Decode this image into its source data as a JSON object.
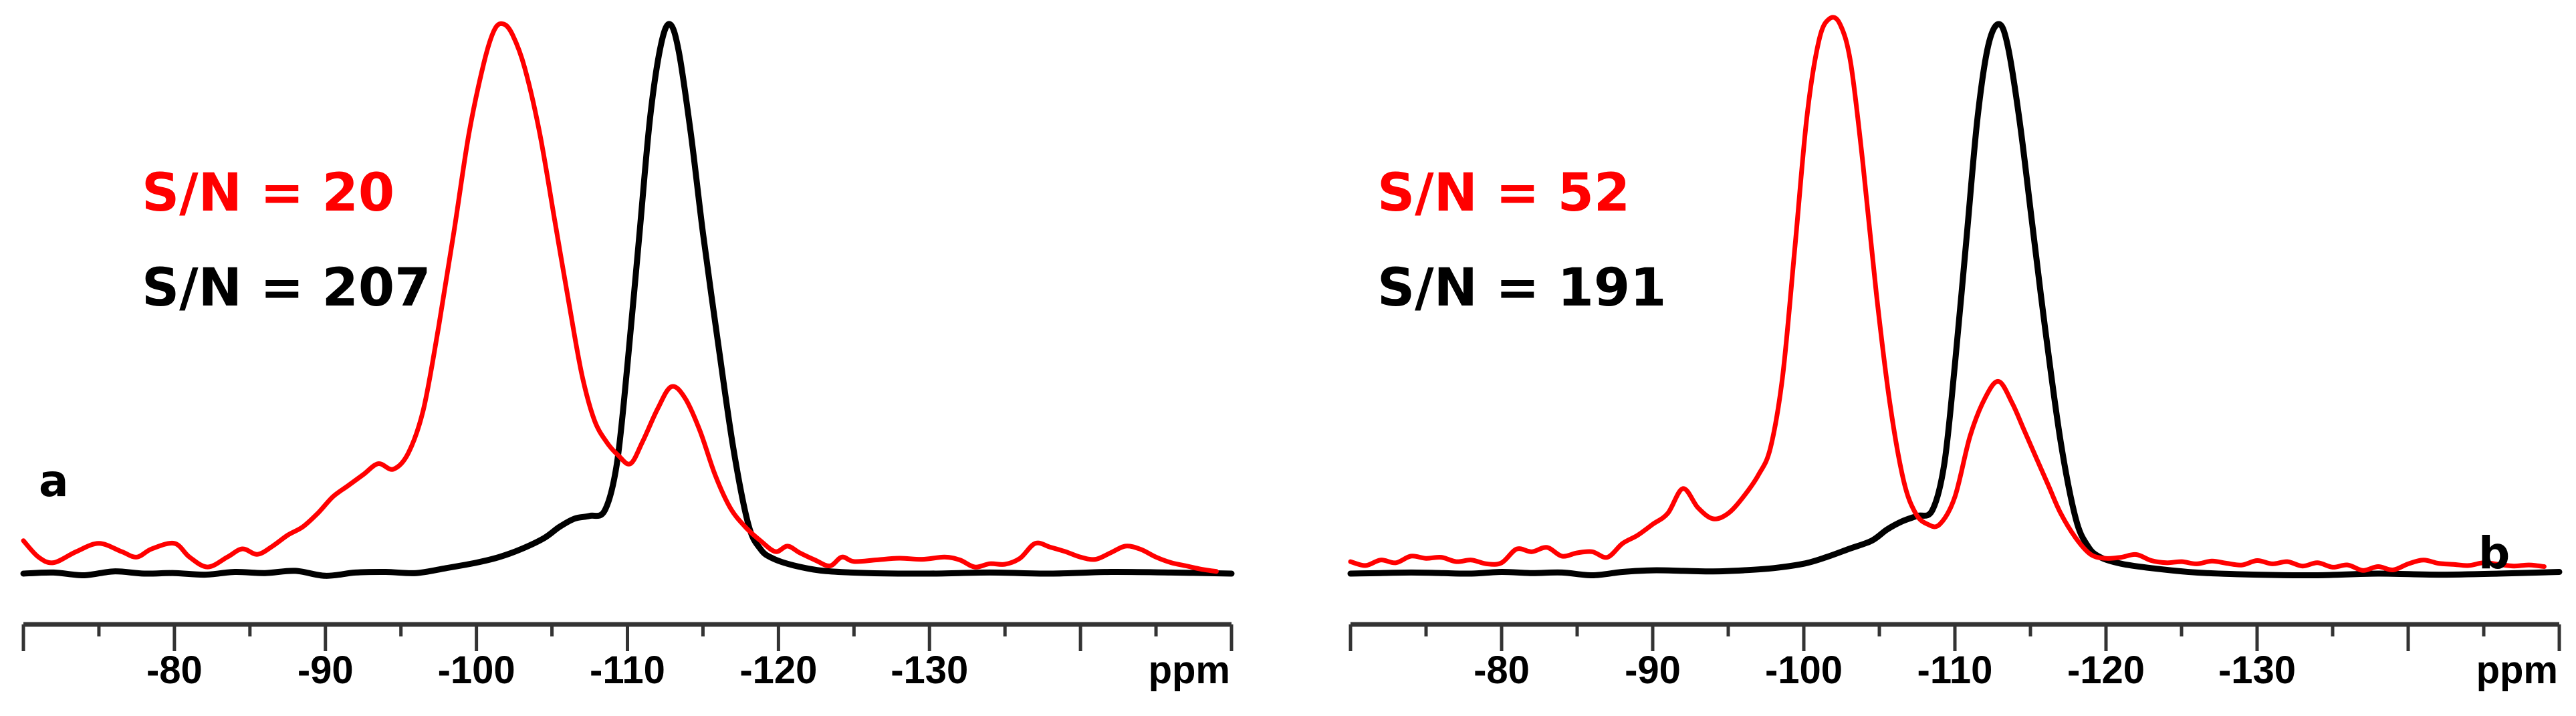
{
  "colors": {
    "red": "#ff0000",
    "black": "#000000",
    "axis": "#333333"
  },
  "panels": [
    {
      "label": "a",
      "sn_red": "S/N = 20",
      "sn_black": "S/N = 207",
      "axis_unit": "ppm"
    },
    {
      "label": "b",
      "sn_red": "S/N = 52",
      "sn_black": "S/N = 191",
      "axis_unit": "ppm"
    }
  ],
  "chart_data": [
    {
      "type": "line",
      "panel": "a",
      "title": "",
      "xlabel": "ppm",
      "ylabel": "",
      "xlim": [
        -70,
        -150
      ],
      "x_reversed": true,
      "major_ticks": [
        -70,
        -80,
        -90,
        -100,
        -110,
        -120,
        -130,
        -140,
        -150
      ],
      "tick_labels": [
        "-80",
        "-90",
        "-100",
        "-110",
        "-120",
        "-130"
      ],
      "minor_tick_step": 5,
      "grid": false,
      "annotations": [
        {
          "text": "S/N = 20",
          "color": "#ff0000"
        },
        {
          "text": "S/N = 207",
          "color": "#000000"
        },
        {
          "text": "a",
          "color": "#000000"
        }
      ],
      "series": [
        {
          "name": "red spectrum (S/N = 20)",
          "color": "#ff0000",
          "x": [
            -70,
            -71,
            -72,
            -73.5,
            -75,
            -76.5,
            -77.5,
            -78.5,
            -80,
            -81,
            -82.2,
            -83.5,
            -84.5,
            -85.5,
            -86.5,
            -87.5,
            -88.5,
            -89.5,
            -90.5,
            -91.5,
            -92.5,
            -93.5,
            -94.5,
            -95.5,
            -96.5,
            -97.5,
            -98.5,
            -99.5,
            -100.5,
            -101.2,
            -101.8,
            -102.4,
            -103.2,
            -104.2,
            -105.2,
            -106.2,
            -107,
            -107.8,
            -108.6,
            -109.4,
            -110.2,
            -111,
            -112,
            -112.9,
            -113.8,
            -114.8,
            -115.8,
            -116.8,
            -117.8,
            -118.8,
            -119.8,
            -120.6,
            -121.4,
            -122.4,
            -123.4,
            -124.2,
            -125,
            -126.5,
            -128,
            -129.5,
            -131,
            -132,
            -133,
            -134,
            -135,
            -136,
            -137,
            -138,
            -139,
            -140,
            -141,
            -142,
            -143,
            -144,
            -145,
            -146,
            -147,
            -148,
            -149
          ],
          "y": [
            0.06,
            0.03,
            0.02,
            0.04,
            0.055,
            0.04,
            0.03,
            0.045,
            0.055,
            0.03,
            0.012,
            0.03,
            0.045,
            0.035,
            0.05,
            0.07,
            0.085,
            0.11,
            0.14,
            0.16,
            0.18,
            0.2,
            0.19,
            0.22,
            0.3,
            0.45,
            0.62,
            0.8,
            0.93,
            0.99,
            1.0,
            0.98,
            0.92,
            0.8,
            0.64,
            0.48,
            0.36,
            0.28,
            0.24,
            0.215,
            0.2,
            0.24,
            0.3,
            0.34,
            0.32,
            0.26,
            0.18,
            0.12,
            0.085,
            0.06,
            0.04,
            0.05,
            0.038,
            0.025,
            0.014,
            0.03,
            0.022,
            0.025,
            0.028,
            0.026,
            0.03,
            0.025,
            0.012,
            0.018,
            0.017,
            0.028,
            0.055,
            0.048,
            0.04,
            0.03,
            0.026,
            0.038,
            0.05,
            0.044,
            0.03,
            0.02,
            0.014,
            0.008,
            0.004
          ]
        },
        {
          "name": "black spectrum (S/N = 207)",
          "color": "#000000",
          "x": [
            -70,
            -72,
            -74,
            -76,
            -78,
            -80,
            -82,
            -84,
            -86,
            -88,
            -90,
            -92,
            -94,
            -96,
            -98,
            -100,
            -101.5,
            -103,
            -104.5,
            -105.5,
            -106.5,
            -107.5,
            -108.5,
            -109.3,
            -110,
            -110.8,
            -111.5,
            -112.2,
            -112.8,
            -113.4,
            -114.2,
            -115,
            -116,
            -117,
            -118,
            -118.8,
            -119.6,
            -121,
            -123,
            -126,
            -130,
            -134,
            -138,
            -142,
            -146,
            -150
          ],
          "y": [
            0,
            0.002,
            -0.003,
            0.004,
            0,
            0.001,
            -0.002,
            0.003,
            0.001,
            0.005,
            -0.004,
            0.002,
            0.003,
            0.001,
            0.01,
            0.02,
            0.03,
            0.045,
            0.065,
            0.085,
            0.1,
            0.105,
            0.115,
            0.2,
            0.38,
            0.62,
            0.83,
            0.96,
            1.0,
            0.95,
            0.8,
            0.62,
            0.42,
            0.23,
            0.09,
            0.045,
            0.028,
            0.015,
            0.005,
            0.001,
            0,
            0.002,
            0,
            0.003,
            0.002,
            0
          ]
        }
      ]
    },
    {
      "type": "line",
      "panel": "b",
      "title": "",
      "xlabel": "ppm",
      "ylabel": "",
      "xlim": [
        -70,
        -150
      ],
      "x_reversed": true,
      "major_ticks": [
        -70,
        -80,
        -90,
        -100,
        -110,
        -120,
        -130,
        -140,
        -150
      ],
      "tick_labels": [
        "-80",
        "-90",
        "-100",
        "-110",
        "-120",
        "-130"
      ],
      "minor_tick_step": 5,
      "grid": false,
      "annotations": [
        {
          "text": "S/N = 52",
          "color": "#ff0000"
        },
        {
          "text": "S/N = 191",
          "color": "#000000"
        },
        {
          "text": "b",
          "color": "#000000"
        }
      ],
      "series": [
        {
          "name": "red spectrum (S/N = 52)",
          "color": "#ff0000",
          "x": [
            -70,
            -71,
            -72,
            -73,
            -74,
            -75,
            -76,
            -77,
            -78,
            -79,
            -80,
            -81,
            -82,
            -83,
            -84,
            -85,
            -86,
            -87,
            -88,
            -89,
            -90,
            -91,
            -92,
            -93,
            -94,
            -95,
            -96,
            -97,
            -97.8,
            -98.6,
            -99.4,
            -100.2,
            -101,
            -101.7,
            -102.4,
            -103.1,
            -103.9,
            -104.8,
            -105.7,
            -106.6,
            -107.4,
            -108.2,
            -109,
            -110,
            -111,
            -112,
            -112.9,
            -113.8,
            -114.6,
            -115.4,
            -116.2,
            -117,
            -118,
            -119,
            -120,
            -121,
            -122,
            -123,
            -124,
            -125,
            -126,
            -127,
            -128,
            -129,
            -130,
            -131,
            -132,
            -133,
            -134,
            -135,
            -136,
            -137,
            -138,
            -139,
            -140,
            -141,
            -142,
            -143,
            -144,
            -145,
            -146,
            -147,
            -148,
            -149
          ],
          "y": [
            0.012,
            0.005,
            0.015,
            0.01,
            0.022,
            0.018,
            0.02,
            0.012,
            0.015,
            0.008,
            0.01,
            0.035,
            0.03,
            0.038,
            0.022,
            0.028,
            0.03,
            0.02,
            0.045,
            0.06,
            0.08,
            0.1,
            0.145,
            0.11,
            0.09,
            0.1,
            0.13,
            0.17,
            0.22,
            0.35,
            0.58,
            0.82,
            0.96,
            1.0,
            0.99,
            0.92,
            0.74,
            0.5,
            0.3,
            0.16,
            0.1,
            0.08,
            0.08,
            0.13,
            0.24,
            0.31,
            0.34,
            0.3,
            0.25,
            0.2,
            0.15,
            0.1,
            0.055,
            0.025,
            0.018,
            0.02,
            0.025,
            0.014,
            0.01,
            0.012,
            0.008,
            0.013,
            0.009,
            0.006,
            0.014,
            0.008,
            0.012,
            0.004,
            0.01,
            0.002,
            0.006,
            -0.004,
            0.003,
            -0.003,
            0.008,
            0.015,
            0.009,
            0.007,
            0.005,
            0.01,
            0.007,
            0.004,
            0.006,
            0.003
          ]
        },
        {
          "name": "black spectrum (S/N = 191)",
          "color": "#000000",
          "x": [
            -70,
            -72,
            -74,
            -76,
            -78,
            -80,
            -82,
            -84,
            -86,
            -88,
            -90,
            -92,
            -94,
            -96,
            -98,
            -100,
            -101.5,
            -103,
            -104.5,
            -105.5,
            -106.5,
            -107.5,
            -108.5,
            -109.3,
            -110,
            -110.8,
            -111.5,
            -112.2,
            -112.9,
            -113.5,
            -114.3,
            -115.1,
            -116,
            -117,
            -118,
            -118.8,
            -119.6,
            -121,
            -123,
            -126,
            -130,
            -134,
            -138,
            -142,
            -146,
            -150
          ],
          "y": [
            0,
            0.001,
            0.002,
            0.001,
            0,
            0.003,
            0.001,
            0.002,
            -0.003,
            0.003,
            0.006,
            0.005,
            0.004,
            0.006,
            0.01,
            0.018,
            0.03,
            0.045,
            0.06,
            0.08,
            0.095,
            0.105,
            0.115,
            0.2,
            0.38,
            0.62,
            0.83,
            0.96,
            1.0,
            0.96,
            0.82,
            0.64,
            0.44,
            0.24,
            0.1,
            0.05,
            0.03,
            0.018,
            0.01,
            0.002,
            -0.002,
            -0.003,
            0,
            -0.002,
            0,
            0.003
          ]
        }
      ]
    }
  ]
}
